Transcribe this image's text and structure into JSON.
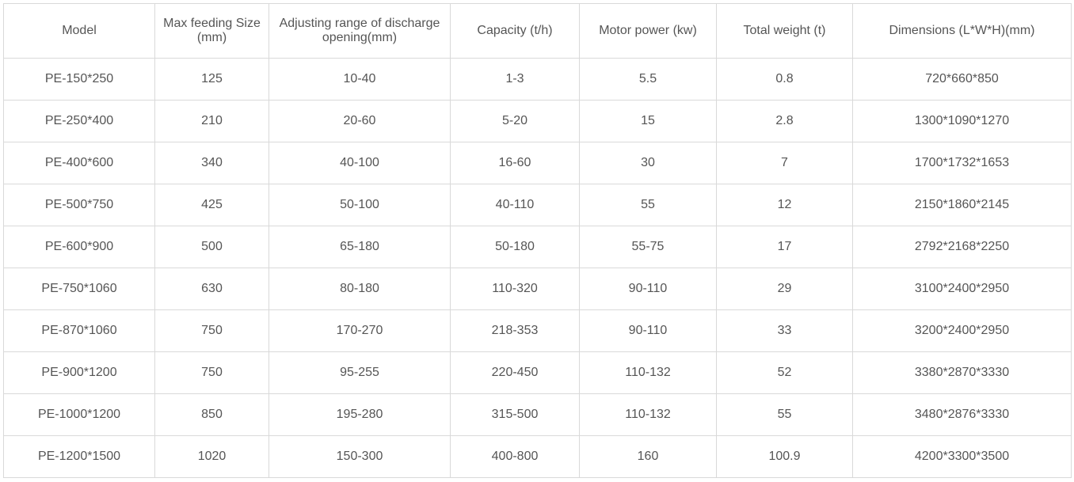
{
  "table": {
    "headers": [
      "Model",
      "Max feeding Size (mm)",
      "Adjusting range of discharge opening(mm)",
      "Capacity (t/h)",
      "Motor power (kw)",
      "Total weight (t)",
      "Dimensions (L*W*H)(mm)"
    ],
    "rows": [
      [
        "PE-150*250",
        "125",
        "10-40",
        "1-3",
        "5.5",
        "0.8",
        "720*660*850"
      ],
      [
        "PE-250*400",
        "210",
        "20-60",
        "5-20",
        "15",
        "2.8",
        "1300*1090*1270"
      ],
      [
        "PE-400*600",
        "340",
        "40-100",
        "16-60",
        "30",
        "7",
        "1700*1732*1653"
      ],
      [
        "PE-500*750",
        "425",
        "50-100",
        "40-110",
        "55",
        "12",
        "2150*1860*2145"
      ],
      [
        "PE-600*900",
        "500",
        "65-180",
        "50-180",
        "55-75",
        "17",
        "2792*2168*2250"
      ],
      [
        "PE-750*1060",
        "630",
        "80-180",
        "110-320",
        "90-110",
        "29",
        "3100*2400*2950"
      ],
      [
        "PE-870*1060",
        "750",
        "170-270",
        "218-353",
        "90-110",
        "33",
        "3200*2400*2950"
      ],
      [
        "PE-900*1200",
        "750",
        "95-255",
        "220-450",
        "110-132",
        "52",
        "3380*2870*3330"
      ],
      [
        "PE-1000*1200",
        "850",
        "195-280",
        "315-500",
        "110-132",
        "55",
        "3480*2876*3330"
      ],
      [
        "PE-1200*1500",
        "1020",
        "150-300",
        "400-800",
        "160",
        "100.9",
        "4200*3300*3500"
      ]
    ]
  },
  "colors": {
    "text": "#555555",
    "border": "#d9d9d9",
    "background": "#ffffff"
  }
}
